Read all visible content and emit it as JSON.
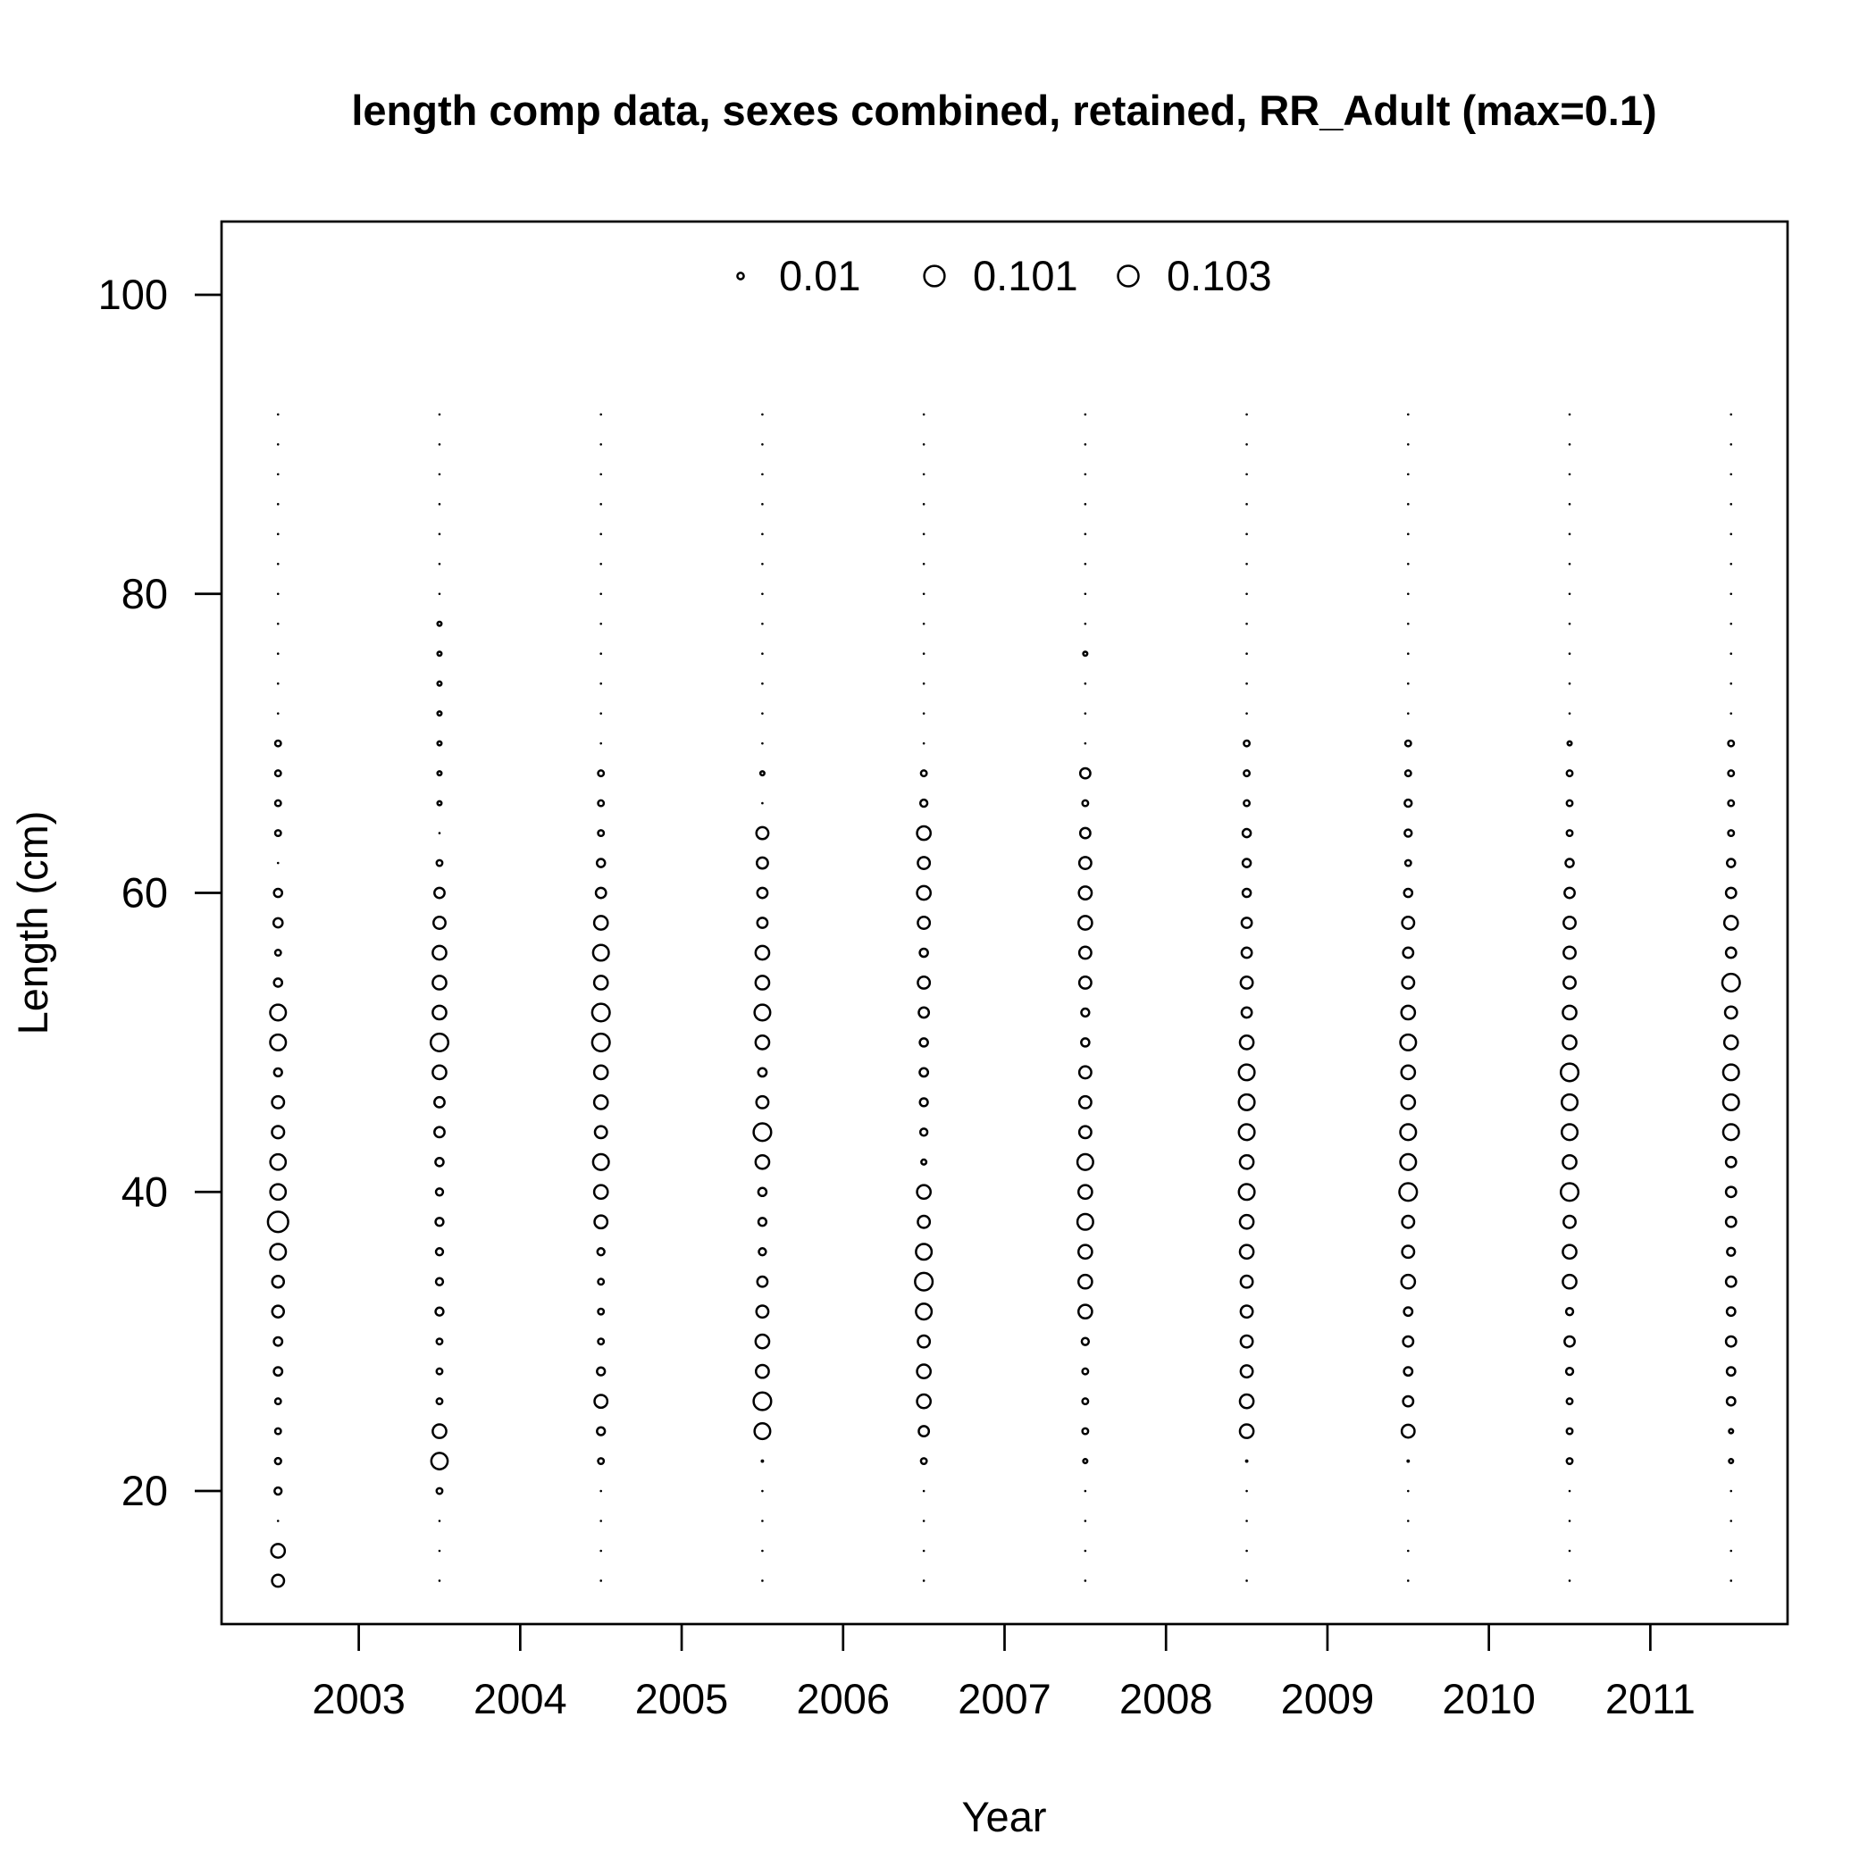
{
  "chart_data": {
    "type": "scatter",
    "title": "length comp data, sexes combined, retained, RR_Adult (max=0.1)",
    "xlabel": "Year",
    "ylabel": "Length (cm)",
    "xlim": [
      2002.15,
      2011.85
    ],
    "ylim": [
      11.1,
      104.9
    ],
    "x_ticks": [
      2003,
      2004,
      2005,
      2006,
      2007,
      2008,
      2009,
      2010,
      2011
    ],
    "x_tick_labels": [
      "2003",
      "2004",
      "2005",
      "2006",
      "2007",
      "2008",
      "2009",
      "2010",
      "2011"
    ],
    "y_ticks": [
      20,
      40,
      60,
      80,
      100
    ],
    "y_tick_labels": [
      "20",
      "40",
      "60",
      "80",
      "100"
    ],
    "grid": false,
    "legend": {
      "placement": "top",
      "entries": [
        {
          "label": "0.01",
          "value": 0.01
        },
        {
          "label": "0.101",
          "value": 0.101
        },
        {
          "label": "0.103",
          "value": 0.103
        }
      ]
    },
    "marker": "open-circle-area-scaled",
    "max_value": 0.103,
    "lengths": [
      14,
      16,
      18,
      20,
      22,
      24,
      26,
      28,
      30,
      32,
      34,
      36,
      38,
      40,
      42,
      44,
      46,
      48,
      50,
      52,
      54,
      56,
      58,
      60,
      62,
      64,
      66,
      68,
      70,
      72,
      74,
      76,
      78,
      80,
      82,
      84,
      86,
      88,
      90,
      92
    ],
    "series": [
      {
        "year": 2002.5,
        "values": [
          0.035,
          0.045,
          0.001,
          0.012,
          0.009,
          0.008,
          0.008,
          0.017,
          0.017,
          0.033,
          0.033,
          0.06,
          0.1,
          0.058,
          0.058,
          0.036,
          0.035,
          0.015,
          0.06,
          0.06,
          0.016,
          0.008,
          0.02,
          0.016,
          0.001,
          0.008,
          0.008,
          0.008,
          0.008,
          0.001,
          0.001,
          0.001,
          0.001,
          0.001,
          0.001,
          0.001,
          0.001,
          0.001,
          0.001,
          0.001
        ]
      },
      {
        "year": 2003.5,
        "values": [
          0.001,
          0.001,
          0.001,
          0.008,
          0.065,
          0.045,
          0.008,
          0.008,
          0.008,
          0.015,
          0.012,
          0.012,
          0.015,
          0.012,
          0.016,
          0.025,
          0.025,
          0.045,
          0.075,
          0.045,
          0.045,
          0.045,
          0.035,
          0.025,
          0.008,
          0.001,
          0.004,
          0.004,
          0.004,
          0.004,
          0.004,
          0.004,
          0.004,
          0.001,
          0.001,
          0.001,
          0.001,
          0.001,
          0.001,
          0.001
        ]
      },
      {
        "year": 2004.5,
        "values": [
          0.001,
          0.001,
          0.001,
          0.001,
          0.008,
          0.015,
          0.04,
          0.015,
          0.008,
          0.008,
          0.008,
          0.012,
          0.04,
          0.045,
          0.06,
          0.035,
          0.045,
          0.045,
          0.075,
          0.075,
          0.045,
          0.06,
          0.045,
          0.025,
          0.016,
          0.008,
          0.008,
          0.008,
          0.001,
          0.001,
          0.001,
          0.001,
          0.001,
          0.001,
          0.001,
          0.001,
          0.001,
          0.001,
          0.001,
          0.001
        ]
      },
      {
        "year": 2005.5,
        "values": [
          0.001,
          0.001,
          0.001,
          0.001,
          0.003,
          0.06,
          0.075,
          0.04,
          0.045,
          0.035,
          0.025,
          0.012,
          0.015,
          0.016,
          0.045,
          0.075,
          0.035,
          0.017,
          0.045,
          0.06,
          0.045,
          0.045,
          0.025,
          0.025,
          0.03,
          0.035,
          0.001,
          0.004,
          0.001,
          0.001,
          0.001,
          0.001,
          0.001,
          0.001,
          0.001,
          0.001,
          0.001,
          0.001,
          0.001,
          0.001
        ]
      },
      {
        "year": 2006.5,
        "values": [
          0.001,
          0.001,
          0.001,
          0.001,
          0.008,
          0.025,
          0.045,
          0.045,
          0.035,
          0.06,
          0.075,
          0.06,
          0.035,
          0.045,
          0.006,
          0.012,
          0.015,
          0.017,
          0.016,
          0.025,
          0.035,
          0.016,
          0.035,
          0.045,
          0.035,
          0.045,
          0.012,
          0.008,
          0.001,
          0.001,
          0.001,
          0.001,
          0.001,
          0.001,
          0.001,
          0.001,
          0.001,
          0.001,
          0.001,
          0.001
        ]
      },
      {
        "year": 2007.5,
        "values": [
          0.001,
          0.001,
          0.001,
          0.001,
          0.004,
          0.008,
          0.008,
          0.008,
          0.012,
          0.045,
          0.045,
          0.045,
          0.06,
          0.045,
          0.06,
          0.035,
          0.035,
          0.035,
          0.016,
          0.015,
          0.035,
          0.035,
          0.045,
          0.04,
          0.035,
          0.025,
          0.008,
          0.025,
          0.001,
          0.001,
          0.001,
          0.004,
          0.001,
          0.001,
          0.001,
          0.001,
          0.001,
          0.001,
          0.001,
          0.001
        ]
      },
      {
        "year": 2008.5,
        "values": [
          0.001,
          0.001,
          0.001,
          0.001,
          0.003,
          0.045,
          0.045,
          0.035,
          0.035,
          0.035,
          0.035,
          0.045,
          0.045,
          0.06,
          0.045,
          0.06,
          0.06,
          0.06,
          0.045,
          0.025,
          0.035,
          0.025,
          0.025,
          0.016,
          0.016,
          0.016,
          0.008,
          0.008,
          0.008,
          0.001,
          0.001,
          0.001,
          0.001,
          0.001,
          0.001,
          0.001,
          0.001,
          0.001,
          0.001,
          0.001
        ]
      },
      {
        "year": 2009.5,
        "values": [
          0.001,
          0.001,
          0.001,
          0.001,
          0.003,
          0.04,
          0.025,
          0.017,
          0.025,
          0.017,
          0.045,
          0.035,
          0.035,
          0.075,
          0.06,
          0.06,
          0.045,
          0.045,
          0.06,
          0.045,
          0.035,
          0.025,
          0.035,
          0.016,
          0.008,
          0.012,
          0.012,
          0.008,
          0.008,
          0.001,
          0.001,
          0.001,
          0.001,
          0.001,
          0.001,
          0.001,
          0.001,
          0.001,
          0.001,
          0.001
        ]
      },
      {
        "year": 2010.5,
        "values": [
          0.001,
          0.001,
          0.001,
          0.001,
          0.008,
          0.008,
          0.008,
          0.012,
          0.025,
          0.012,
          0.045,
          0.045,
          0.035,
          0.075,
          0.045,
          0.06,
          0.06,
          0.075,
          0.045,
          0.045,
          0.035,
          0.035,
          0.035,
          0.025,
          0.016,
          0.008,
          0.008,
          0.008,
          0.004,
          0.001,
          0.001,
          0.001,
          0.001,
          0.001,
          0.001,
          0.001,
          0.001,
          0.001,
          0.001,
          0.001
        ]
      },
      {
        "year": 2011.5,
        "values": [
          0.001,
          0.001,
          0.001,
          0.001,
          0.004,
          0.004,
          0.017,
          0.017,
          0.025,
          0.017,
          0.025,
          0.015,
          0.025,
          0.025,
          0.025,
          0.06,
          0.06,
          0.06,
          0.045,
          0.035,
          0.075,
          0.025,
          0.045,
          0.025,
          0.016,
          0.008,
          0.008,
          0.008,
          0.008,
          0.001,
          0.001,
          0.001,
          0.001,
          0.001,
          0.001,
          0.001,
          0.001,
          0.001,
          0.001,
          0.001
        ]
      }
    ]
  }
}
